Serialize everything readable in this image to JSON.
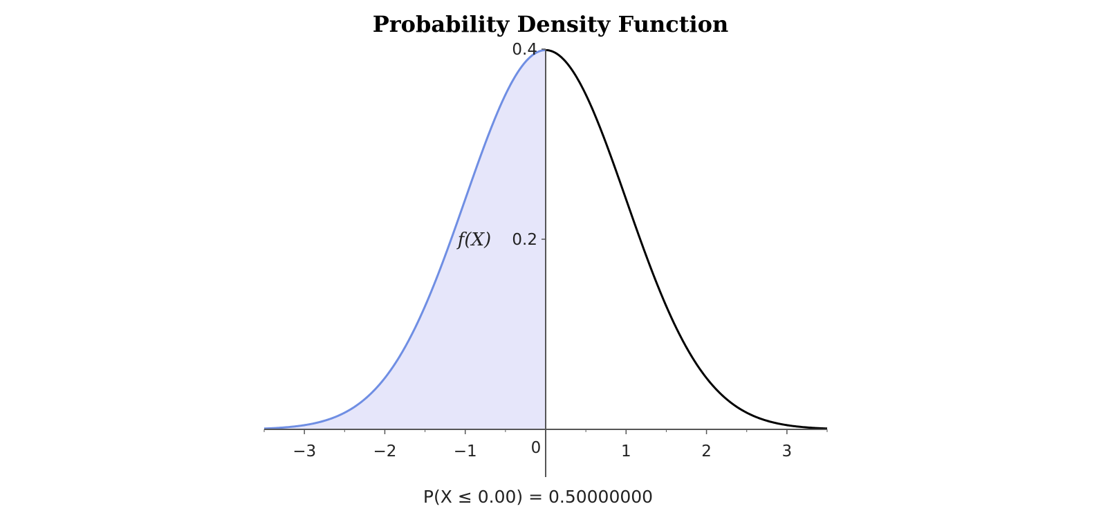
{
  "chart_data": {
    "type": "area",
    "title": "Probability Density Function",
    "ylabel": "f(X)",
    "xlabel": "",
    "xlim": [
      -3.5,
      3.5
    ],
    "ylim": [
      0,
      0.4
    ],
    "x_ticks": [
      {
        "value": -3,
        "label": "−3"
      },
      {
        "value": -2,
        "label": "−2"
      },
      {
        "value": -1,
        "label": "−1"
      },
      {
        "value": 0,
        "label": "0"
      },
      {
        "value": 1,
        "label": "1"
      },
      {
        "value": 2,
        "label": "2"
      },
      {
        "value": 3,
        "label": "3"
      }
    ],
    "y_ticks": [
      {
        "value": 0.2,
        "label": "0.2"
      },
      {
        "value": 0.4,
        "label": "0.4"
      }
    ],
    "distribution": {
      "name": "normal",
      "mean": 0,
      "sd": 1
    },
    "series": [
      {
        "x": [
          -3.5,
          -3,
          -2.5,
          -2,
          -1.5,
          -1,
          -0.5,
          0,
          0.5,
          1,
          1.5,
          2,
          2.5,
          3,
          3.5
        ],
        "values": [
          0.0009,
          0.0044,
          0.0175,
          0.054,
          0.1295,
          0.242,
          0.3521,
          0.3989,
          0.3521,
          0.242,
          0.1295,
          0.054,
          0.0175,
          0.0044,
          0.0009
        ]
      }
    ],
    "shaded_region": {
      "from": -3.5,
      "to": 0
    },
    "annotation": "P(X ≤ 0.00) = 0.50000000",
    "grid": false,
    "colors": {
      "shaded_fill": "#e6e6fa",
      "shaded_line": "#6f8ee3",
      "curve_line": "#000000",
      "axis_line": "#555555"
    }
  }
}
